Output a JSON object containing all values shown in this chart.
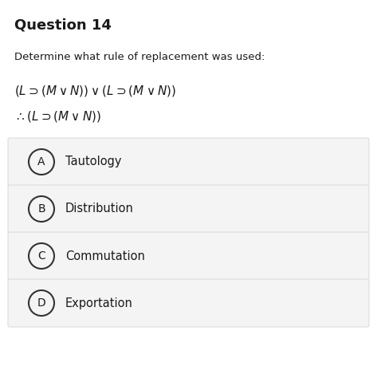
{
  "title": "Question 14",
  "subtitle": "Determine what rule of replacement was used:",
  "options": [
    {
      "label": "A",
      "text": "Tautology"
    },
    {
      "label": "B",
      "text": "Distribution"
    },
    {
      "label": "C",
      "text": "Commutation"
    },
    {
      "label": "D",
      "text": "Exportation"
    }
  ],
  "bg_color": "#ffffff",
  "option_bg_color": "#f4f4f4",
  "option_border_color": "#d8d8d8",
  "text_color": "#1a1a1a",
  "title_fontsize": 13,
  "subtitle_fontsize": 9.5,
  "formula_fontsize": 11,
  "option_fontsize": 10.5,
  "option_label_fontsize": 10
}
